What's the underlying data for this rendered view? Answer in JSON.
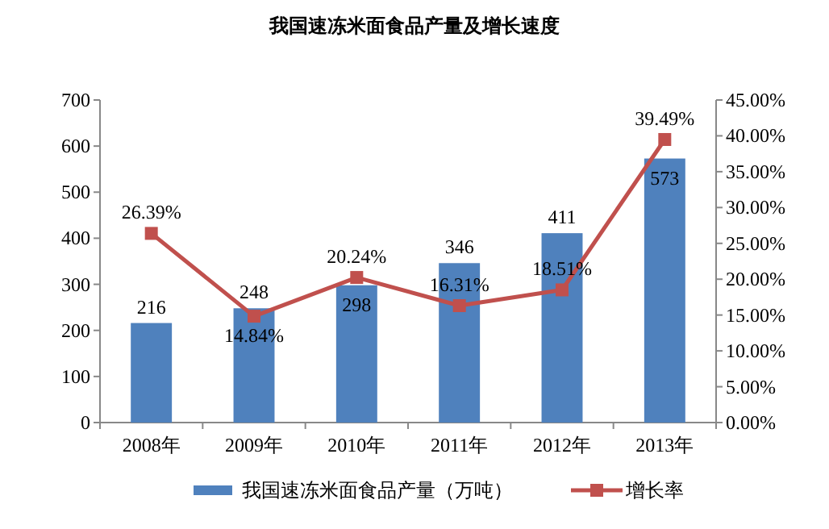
{
  "chart_data": {
    "type": "bar",
    "title": "我国速冻米面食品产量及增长速度",
    "categories": [
      "2008年",
      "2009年",
      "2010年",
      "2011年",
      "2012年",
      "2013年"
    ],
    "series": [
      {
        "name": "我国速冻米面食品产量（万吨）",
        "color": "#4f81bd",
        "values": [
          216,
          248,
          298,
          346,
          411,
          573
        ],
        "value_labels": [
          "216",
          "248",
          "298",
          "346",
          "411",
          "573"
        ]
      },
      {
        "name": "增长率",
        "type": "line",
        "axis": "y2",
        "color": "#c0504d",
        "marker": "square",
        "values": [
          26.39,
          14.84,
          20.24,
          16.31,
          18.51,
          39.49
        ],
        "value_labels": [
          "26.39%",
          "14.84%",
          "20.24%",
          "16.31%",
          "18.51%",
          "39.49%"
        ]
      }
    ],
    "ylim": [
      0,
      700
    ],
    "yticks": [
      0,
      100,
      200,
      300,
      400,
      500,
      600,
      700
    ],
    "y2lim": [
      0,
      45
    ],
    "y2ticks": [
      {
        "value": 0,
        "label": "0.00%"
      },
      {
        "value": 5,
        "label": "5.00%"
      },
      {
        "value": 10,
        "label": "10.00%"
      },
      {
        "value": 15,
        "label": "15.00%"
      },
      {
        "value": 20,
        "label": "20.00%"
      },
      {
        "value": 25,
        "label": "25.00%"
      },
      {
        "value": 30,
        "label": "30.00%"
      },
      {
        "value": 35,
        "label": "35.00%"
      },
      {
        "value": 40,
        "label": "40.00%"
      },
      {
        "value": 45,
        "label": "45.00%"
      }
    ],
    "legend": "bottom",
    "grid": false
  }
}
